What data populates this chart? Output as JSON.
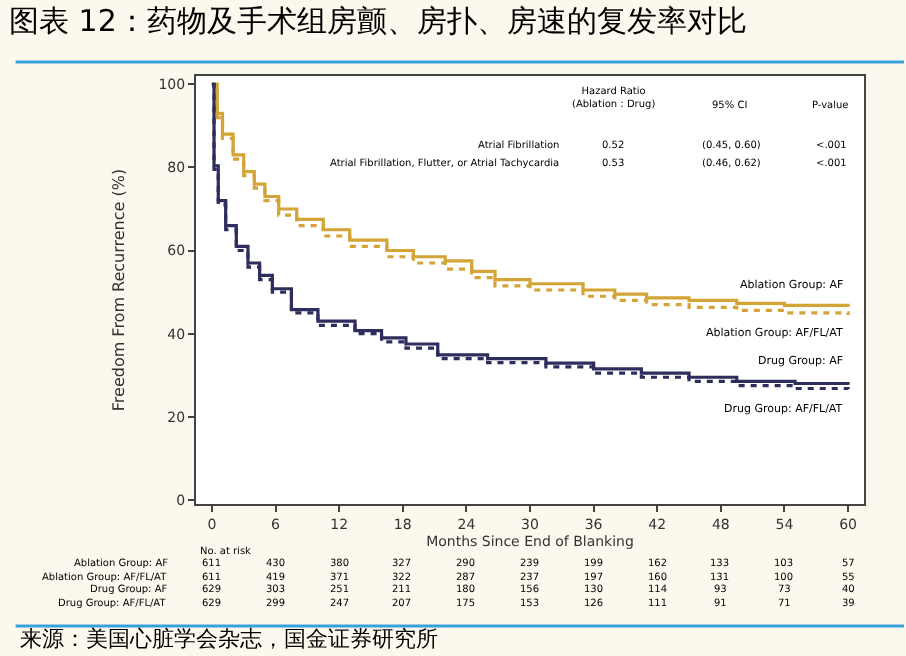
{
  "chart_data": {
    "type": "step",
    "title": "图表 12：药物及手术组房颤、房扑、房速的复发率对比",
    "xlabel": "Months Since End of Blanking",
    "ylabel": "Freedom From Recurrence (%)",
    "xlim": [
      -1.5,
      61.5
    ],
    "ylim": [
      -1,
      102
    ],
    "xticks": [
      0,
      6,
      12,
      18,
      24,
      30,
      36,
      42,
      48,
      54,
      60
    ],
    "yticks": [
      0,
      20,
      40,
      60,
      80,
      100
    ],
    "grid": false,
    "legend": false,
    "marker": "none",
    "series": [
      {
        "name": "Ablation Group: AF",
        "color": "#d4a437",
        "line_style": "solid",
        "x": [
          0,
          0.5,
          1,
          2,
          3,
          4,
          5,
          6.3,
          8,
          10.5,
          13,
          16.5,
          19,
          22,
          24.5,
          26.7,
          30,
          35,
          38,
          41,
          45,
          49.5,
          54,
          60
        ],
        "values": [
          100,
          93,
          88,
          83,
          79,
          76,
          73,
          70,
          67.5,
          65,
          62.5,
          60,
          58.5,
          57.5,
          55,
          53,
          52,
          50.5,
          49.5,
          48.6,
          48,
          47.3,
          46.8,
          46.4
        ]
      },
      {
        "name": "Ablation Group: AF/FL/AT",
        "color": "#d4a437",
        "line_style": "dotted",
        "x": [
          0,
          0.5,
          1,
          2,
          3,
          4,
          5,
          6.3,
          8,
          10.5,
          13,
          16.5,
          19,
          22,
          24.5,
          26.7,
          30,
          35,
          38,
          41,
          45,
          49.5,
          54,
          60
        ],
        "values": [
          100,
          92,
          87,
          82,
          78,
          75,
          72,
          68.5,
          66,
          63.5,
          61,
          58.5,
          57,
          55.5,
          53.5,
          51.5,
          50.5,
          49,
          48,
          47,
          46.3,
          45.6,
          45,
          44.5
        ]
      },
      {
        "name": "Drug Group: AF",
        "color": "#2e2e5e",
        "line_style": "solid",
        "x": [
          0,
          0.2,
          0.6,
          1.3,
          2.3,
          3.4,
          4.5,
          5.7,
          7.5,
          10,
          13.5,
          16,
          18.3,
          21.3,
          26,
          31.5,
          36,
          40.5,
          45,
          49.5,
          55,
          60
        ],
        "values": [
          100,
          80.4,
          72,
          66,
          61,
          57,
          54,
          50.8,
          45.8,
          43,
          40.7,
          39,
          37.5,
          34.9,
          34,
          32.9,
          31.5,
          30.5,
          29.5,
          28.5,
          28,
          27.7
        ]
      },
      {
        "name": "Drug Group: AF/FL/AT",
        "color": "#2e2e5e",
        "line_style": "dotted",
        "x": [
          0,
          0.2,
          0.6,
          1.3,
          2.3,
          3.4,
          4.5,
          5.7,
          7.5,
          10,
          13.5,
          16,
          18.3,
          21.3,
          26,
          31.5,
          36,
          40.5,
          45,
          49.5,
          55,
          60
        ],
        "values": [
          100,
          79.5,
          71,
          65,
          60,
          56,
          53,
          50,
          45,
          42,
          40,
          38,
          36.5,
          34,
          33,
          32,
          30.5,
          29.5,
          28.5,
          27.5,
          26.8,
          26.6
        ]
      }
    ],
    "annotations": [
      "Hazard Ratio\n(Ablation : Drug)",
      "95% CI",
      "P-value",
      "Atrial Fibrillation",
      "0.52",
      "(0.45, 0.60)",
      "<.001",
      "Atrial Fibrillation, Flutter, or Atrial Tachycardia",
      "0.53",
      "(0.46, 0.62)",
      "<.001",
      "No. at risk",
      "Ablation Group: AF",
      "Ablation Group: AF/FL/AT",
      "Drug Group: AF",
      "Drug Group: AF/FL/AT",
      "611",
      "430",
      "380",
      "327",
      "290",
      "239",
      "199",
      "162",
      "133",
      "103",
      "57",
      "611",
      "419",
      "371",
      "322",
      "287",
      "237",
      "197",
      "160",
      "131",
      "100",
      "55",
      "629",
      "303",
      "251",
      "211",
      "180",
      "156",
      "130",
      "114",
      "93",
      "73",
      "40",
      "629",
      "299",
      "247",
      "207",
      "175",
      "153",
      "126",
      "111",
      "91",
      "71",
      "39",
      "来源：美国心脏学会杂志，国金证券研究所"
    ]
  }
}
